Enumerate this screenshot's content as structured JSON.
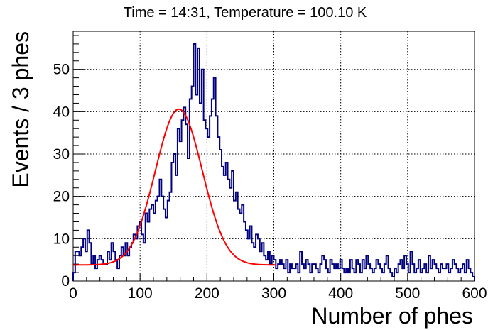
{
  "chart_data": {
    "type": "histogram",
    "title": "Time = 14:31, Temperature = 100.10 K",
    "xlabel": "Number of phes",
    "ylabel": "Events / 3 phes",
    "xlim": [
      0,
      600
    ],
    "ylim": [
      0,
      59
    ],
    "grid": true,
    "bin_width": 3,
    "x_ticks": [
      0,
      100,
      200,
      300,
      400,
      500,
      600
    ],
    "y_ticks": [
      0,
      10,
      20,
      30,
      40,
      50
    ],
    "series": [
      {
        "color": "#000080",
        "values": [
          2,
          7,
          7,
          6,
          8,
          10,
          7,
          12,
          9,
          4,
          6,
          3,
          5,
          6,
          5,
          4,
          4,
          7,
          5,
          9,
          7,
          5,
          3,
          6,
          8,
          6,
          9,
          6,
          8,
          9,
          11,
          10,
          13,
          14,
          11,
          9,
          16,
          14,
          17,
          18,
          16,
          19,
          20,
          24,
          20,
          17,
          15,
          19,
          21,
          28,
          30,
          25,
          36,
          33,
          38,
          41,
          37,
          29,
          43,
          46,
          56,
          44,
          55,
          42,
          50,
          38,
          36,
          34,
          39,
          43,
          48,
          39,
          34,
          31,
          27,
          25,
          28,
          24,
          22,
          26,
          19,
          21,
          17,
          16,
          18,
          14,
          12,
          10,
          13,
          9,
          8,
          11,
          10,
          7,
          9,
          6,
          5,
          7,
          4,
          6,
          5,
          3,
          4,
          5,
          4,
          3,
          5,
          2,
          4,
          3,
          3,
          4,
          2,
          7,
          4,
          3,
          5,
          4,
          2,
          4,
          4,
          3,
          2,
          4,
          6,
          5,
          3,
          2,
          5,
          4,
          3,
          4,
          3,
          5,
          3,
          2,
          3,
          2,
          5,
          3,
          2,
          5,
          4,
          2,
          5,
          3,
          6,
          4,
          3,
          2,
          3,
          5,
          4,
          3,
          2,
          4,
          6,
          3,
          2,
          1,
          3,
          2,
          4,
          5,
          3,
          6,
          4,
          2,
          7,
          4,
          2,
          3,
          5,
          2,
          3,
          4,
          2,
          6,
          3,
          5,
          4,
          3,
          2,
          4,
          3,
          3,
          4,
          2,
          3,
          5,
          4,
          3,
          2,
          3,
          4,
          2,
          5,
          3,
          2,
          1
        ]
      },
      {
        "type": "fit",
        "color": "#ff0000",
        "model": "gaussian",
        "constant": 36.8,
        "mean": 158,
        "sigma": 35,
        "baseline": 3.8,
        "range": [
          0,
          305
        ]
      }
    ]
  }
}
